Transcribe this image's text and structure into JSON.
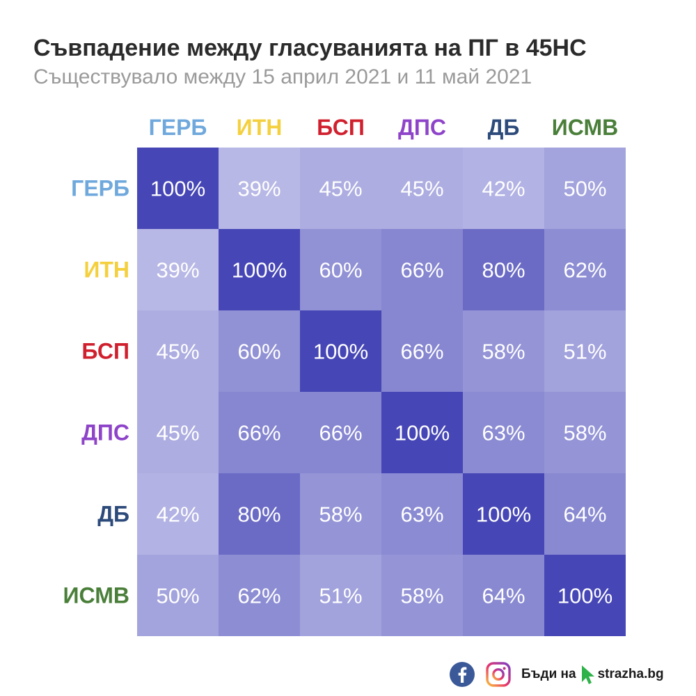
{
  "header": {
    "title": "Съвпадение между гласуванията на ПГ в 45НС",
    "subtitle": "Съществувало между 15 април 2021 и 11 май 2021"
  },
  "chart_data": {
    "type": "heatmap",
    "unit": "%",
    "columns": [
      {
        "label": "ГЕРБ",
        "color": "#6fa8dc"
      },
      {
        "label": "ИТН",
        "color": "#f4d03f"
      },
      {
        "label": "БСП",
        "color": "#d0202e"
      },
      {
        "label": "ДПС",
        "color": "#8e44c9"
      },
      {
        "label": "ДБ",
        "color": "#2c4a7a"
      },
      {
        "label": "ИСМВ",
        "color": "#4a7f3a"
      }
    ],
    "rows": [
      {
        "label": "ГЕРБ",
        "color": "#6fa8dc"
      },
      {
        "label": "ИТН",
        "color": "#f4d03f"
      },
      {
        "label": "БСП",
        "color": "#d0202e"
      },
      {
        "label": "ДПС",
        "color": "#8e44c9"
      },
      {
        "label": "ДБ",
        "color": "#2c4a7a"
      },
      {
        "label": "ИСМВ",
        "color": "#4a7f3a"
      }
    ],
    "values": [
      [
        100,
        39,
        45,
        45,
        42,
        50
      ],
      [
        39,
        100,
        60,
        66,
        80,
        62
      ],
      [
        45,
        60,
        100,
        66,
        58,
        51
      ],
      [
        45,
        66,
        66,
        100,
        63,
        58
      ],
      [
        42,
        80,
        58,
        63,
        100,
        64
      ],
      [
        50,
        62,
        51,
        58,
        64,
        100
      ]
    ],
    "color_scale": {
      "low": "#b8b8e6",
      "high": "#4646b6"
    },
    "value_range": [
      39,
      100
    ]
  },
  "footer": {
    "brand_prefix": "Бъди на",
    "brand_site": "strazha.bg",
    "facebook_color": "#3b5998",
    "arrow_color": "#2fb24a"
  }
}
